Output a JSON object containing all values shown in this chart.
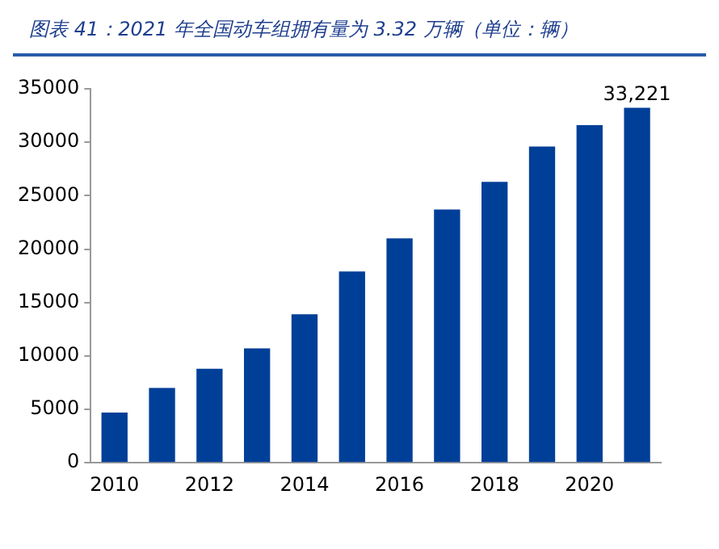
{
  "chart_data": {
    "type": "bar",
    "title": "图表 41：2021 年全国动车组拥有量为 3.32 万辆（单位：辆）",
    "categories": [
      "2010",
      null,
      "2012",
      null,
      "2014",
      null,
      "2016",
      null,
      "2018",
      null,
      "2020",
      null
    ],
    "values": [
      4700,
      7000,
      8800,
      10700,
      13900,
      17900,
      21000,
      23700,
      26300,
      29600,
      31600,
      33221
    ],
    "value_labels": [
      null,
      null,
      null,
      null,
      null,
      null,
      null,
      null,
      null,
      null,
      null,
      "33,221"
    ],
    "color": "#003f98",
    "ylim": [
      0,
      35000
    ],
    "yticks": [
      0,
      5000,
      10000,
      15000,
      20000,
      25000,
      30000,
      35000
    ],
    "grid": false
  }
}
